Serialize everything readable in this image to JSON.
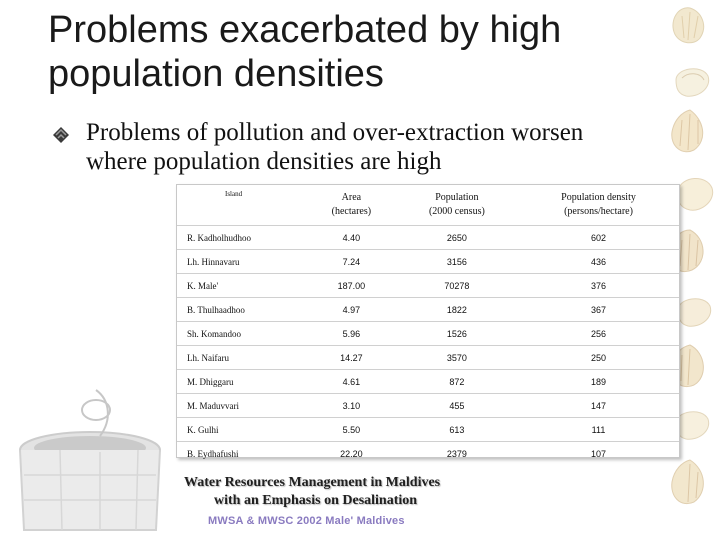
{
  "slide": {
    "title": "Problems exacerbated by high population densities",
    "bullet": "Problems of pollution and over-extraction worsen where population densities are high"
  },
  "table": {
    "headers": {
      "island": "Island",
      "area_line1": "Area",
      "area_line2": "(hectares)",
      "pop_line1": "Population",
      "pop_line2": "(2000 census)",
      "density_line1": "Population density",
      "density_line2": "(persons/hectare)"
    },
    "rows": [
      {
        "island": "R. Kadholhudhoo",
        "area": "4.40",
        "population": "2650",
        "density": "602"
      },
      {
        "island": "Lh. Hinnavaru",
        "area": "7.24",
        "population": "3156",
        "density": "436"
      },
      {
        "island": "K. Male'",
        "area": "187.00",
        "population": "70278",
        "density": "376"
      },
      {
        "island": "B. Thulhaadhoo",
        "area": "4.97",
        "population": "1822",
        "density": "367"
      },
      {
        "island": "Sh. Komandoo",
        "area": "5.96",
        "population": "1526",
        "density": "256"
      },
      {
        "island": "Lh. Naifaru",
        "area": "14.27",
        "population": "3570",
        "density": "250"
      },
      {
        "island": "M. Dhiggaru",
        "area": "4.61",
        "population": "872",
        "density": "189"
      },
      {
        "island": "M. Maduvvari",
        "area": "3.10",
        "population": "455",
        "density": "147"
      },
      {
        "island": "K. Gulhi",
        "area": "5.50",
        "population": "613",
        "density": "111"
      },
      {
        "island": "B. Eydhafushi",
        "area": "22.20",
        "population": "2379",
        "density": "107"
      }
    ]
  },
  "footer": {
    "line1": "Water Resources Management in Maldives",
    "line2": "with an Emphasis on Desalination",
    "line3": "MWSA & MWSC 2002 Male' Maldives"
  },
  "decor": {
    "shell_icon": "seashell-icon",
    "well_icon": "water-well-icon",
    "bullet_icon": "bullet-icon"
  }
}
